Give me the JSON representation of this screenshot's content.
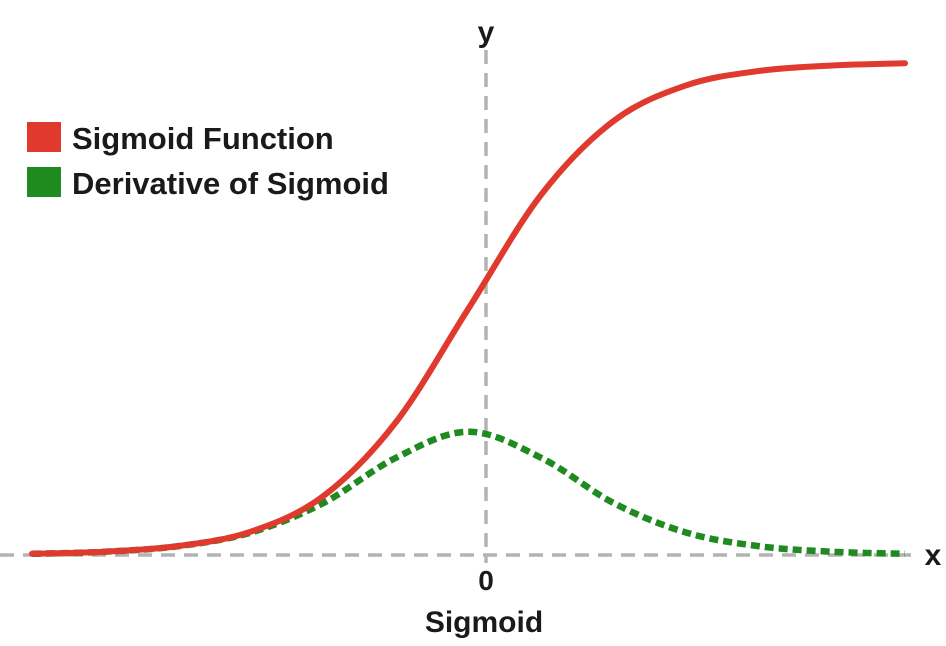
{
  "chart_data": {
    "type": "line",
    "title": "Sigmoid",
    "xlabel": "x",
    "ylabel": "y",
    "x_tick_labels": [
      "0"
    ],
    "xlim": [
      -6,
      6
    ],
    "ylim": [
      0,
      1
    ],
    "grid": false,
    "legend_position": "top-left",
    "series": [
      {
        "name": "Sigmoid Function",
        "color": "#e03a2e",
        "style": "solid",
        "x": [
          -6,
          -5,
          -4,
          -3,
          -2,
          -1,
          0,
          1,
          2,
          3,
          4,
          5,
          6
        ],
        "y": [
          0.0025,
          0.0067,
          0.018,
          0.047,
          0.119,
          0.269,
          0.5,
          0.731,
          0.881,
          0.953,
          0.982,
          0.993,
          0.9975
        ]
      },
      {
        "name": "Derivative of Sigmoid",
        "color": "#1f8a1f",
        "style": "dotted",
        "x": [
          -6,
          -5,
          -4,
          -3,
          -2,
          -1,
          0,
          1,
          2,
          3,
          4,
          5,
          6
        ],
        "y": [
          0.0025,
          0.0066,
          0.0177,
          0.0452,
          0.105,
          0.197,
          0.25,
          0.197,
          0.105,
          0.0452,
          0.0177,
          0.0066,
          0.0025
        ]
      }
    ],
    "axis_color": "#b3b3b3"
  }
}
